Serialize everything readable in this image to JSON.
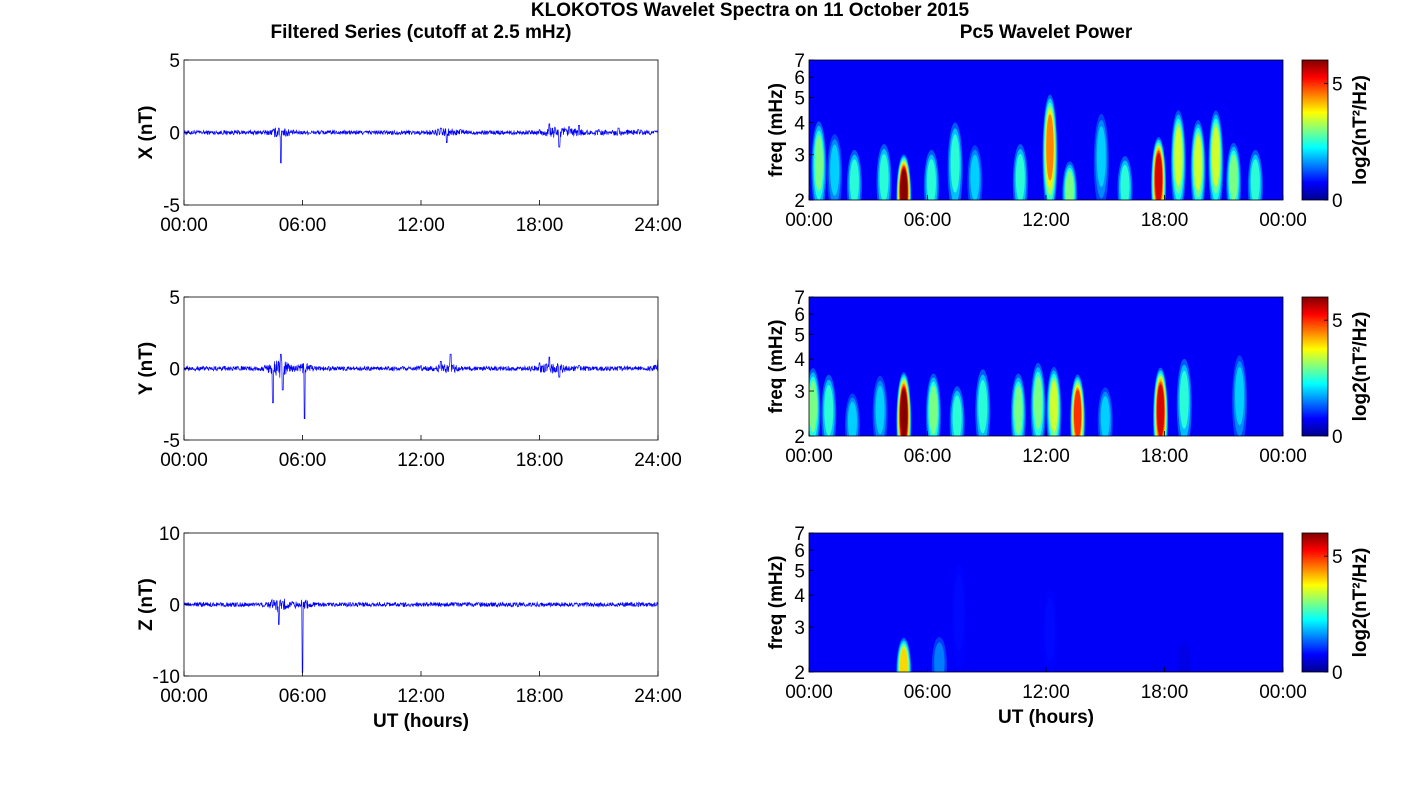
{
  "figure": {
    "title": "KLOKOTOS Wavelet Spectra on 11 October 2015",
    "left_column_title": "Filtered Series (cutoff at 2.5 mHz)",
    "right_column_title": "Pc5 Wavelet Power",
    "xlabel": "UT (hours)"
  },
  "colors": {
    "series_line": "#0000ff",
    "colormap": "jet",
    "background": "#ffffff"
  },
  "chart_data": [
    {
      "type": "line",
      "component": "X",
      "ylabel": "X (nT)",
      "xlim": [
        0,
        24
      ],
      "ylim": [
        -5,
        5
      ],
      "xticks": [
        "00:00",
        "06:00",
        "12:00",
        "18:00",
        "24:00"
      ],
      "yticks": [
        "-5",
        "0",
        "5"
      ],
      "series": [
        {
          "x_hours": [
            0,
            1,
            2,
            3,
            4,
            4.8,
            4.9,
            5,
            6,
            7,
            8,
            9,
            10,
            11,
            12,
            13,
            13.3,
            14,
            15,
            16,
            17,
            18,
            18.5,
            19,
            19.5,
            20,
            21,
            22,
            23,
            24
          ],
          "y_nT": [
            0,
            0,
            0,
            0,
            0,
            0.3,
            -2.1,
            0.1,
            0,
            0,
            0,
            0,
            0,
            0,
            0,
            0.3,
            -0.7,
            0.2,
            0,
            0,
            0,
            0.2,
            0.6,
            -1.0,
            0.4,
            0.5,
            0.2,
            0.3,
            0.2,
            0
          ]
        }
      ]
    },
    {
      "type": "line",
      "component": "Y",
      "ylabel": "Y (nT)",
      "xlim": [
        0,
        24
      ],
      "ylim": [
        -5,
        5
      ],
      "xticks": [
        "00:00",
        "06:00",
        "12:00",
        "18:00",
        "24:00"
      ],
      "yticks": [
        "-5",
        "0",
        "5"
      ],
      "series": [
        {
          "x_hours": [
            0,
            1,
            2,
            3,
            4,
            4.5,
            4.9,
            5,
            6,
            6.1,
            7,
            8,
            9,
            10,
            11,
            12,
            13,
            13.5,
            14,
            15,
            16,
            17,
            18,
            18.5,
            19,
            20,
            21,
            22,
            23,
            24
          ],
          "y_nT": [
            0,
            0,
            0,
            0,
            0,
            -2.4,
            1.0,
            -1.5,
            0,
            -3.5,
            0,
            0,
            0,
            0,
            0,
            0.2,
            0.5,
            1.0,
            0,
            0,
            0,
            0,
            0.4,
            0.8,
            -0.6,
            0.2,
            0,
            0.1,
            0,
            0.6
          ]
        }
      ]
    },
    {
      "type": "line",
      "component": "Z",
      "ylabel": "Z (nT)",
      "xlim": [
        0,
        24
      ],
      "ylim": [
        -10,
        10
      ],
      "xticks": [
        "00:00",
        "06:00",
        "12:00",
        "18:00",
        "24:00"
      ],
      "yticks": [
        "-10",
        "0",
        "10"
      ],
      "series": [
        {
          "x_hours": [
            0,
            2,
            4,
            4.7,
            4.8,
            5,
            5.9,
            6,
            6.1,
            8,
            10,
            12,
            14,
            16,
            18,
            20,
            22,
            24
          ],
          "y_nT": [
            0,
            0,
            0,
            0.5,
            -2.8,
            0.4,
            0,
            -9.5,
            0,
            0,
            0,
            0,
            0,
            0,
            0,
            0,
            0,
            0
          ]
        }
      ]
    },
    {
      "type": "heatmap",
      "component": "X",
      "ylabel": "freq (mHz)",
      "colorbar_label": "log2(nT²/Hz)",
      "xlim": [
        0,
        24
      ],
      "ylim_mHz": [
        2,
        7
      ],
      "yscale": "log",
      "clim": [
        0,
        6
      ],
      "xticks": [
        "00:00",
        "06:00",
        "12:00",
        "18:00",
        "00:00"
      ],
      "yticks": [
        "2",
        "3",
        "4",
        "5",
        "6",
        "7"
      ],
      "cticks": [
        "0",
        "5"
      ],
      "peaks": [
        {
          "t_hours": 0.5,
          "f_mHz": 3.0,
          "log2_power": 3.0
        },
        {
          "t_hours": 1.3,
          "f_mHz": 2.8,
          "log2_power": 2.0
        },
        {
          "t_hours": 2.3,
          "f_mHz": 2.5,
          "log2_power": 2.5
        },
        {
          "t_hours": 3.8,
          "f_mHz": 2.6,
          "log2_power": 2.5
        },
        {
          "t_hours": 4.8,
          "f_mHz": 2.3,
          "log2_power": 6.0
        },
        {
          "t_hours": 6.2,
          "f_mHz": 2.5,
          "log2_power": 2.5
        },
        {
          "t_hours": 7.4,
          "f_mHz": 3.0,
          "log2_power": 2.5
        },
        {
          "t_hours": 8.4,
          "f_mHz": 2.6,
          "log2_power": 2.0
        },
        {
          "t_hours": 10.7,
          "f_mHz": 2.6,
          "log2_power": 2.5
        },
        {
          "t_hours": 12.2,
          "f_mHz": 3.5,
          "log2_power": 4.5
        },
        {
          "t_hours": 13.2,
          "f_mHz": 2.3,
          "log2_power": 3.0
        },
        {
          "t_hours": 14.8,
          "f_mHz": 3.2,
          "log2_power": 2.0
        },
        {
          "t_hours": 16.0,
          "f_mHz": 2.4,
          "log2_power": 2.5
        },
        {
          "t_hours": 17.7,
          "f_mHz": 2.6,
          "log2_power": 5.5
        },
        {
          "t_hours": 18.7,
          "f_mHz": 3.2,
          "log2_power": 3.5
        },
        {
          "t_hours": 19.7,
          "f_mHz": 3.0,
          "log2_power": 3.5
        },
        {
          "t_hours": 20.6,
          "f_mHz": 3.2,
          "log2_power": 3.5
        },
        {
          "t_hours": 21.5,
          "f_mHz": 2.6,
          "log2_power": 3.0
        },
        {
          "t_hours": 22.6,
          "f_mHz": 2.5,
          "log2_power": 2.5
        }
      ]
    },
    {
      "type": "heatmap",
      "component": "Y",
      "ylabel": "freq (mHz)",
      "colorbar_label": "log2(nT²/Hz)",
      "xlim": [
        0,
        24
      ],
      "ylim_mHz": [
        2,
        7
      ],
      "yscale": "log",
      "clim": [
        0,
        6
      ],
      "xticks": [
        "00:00",
        "06:00",
        "12:00",
        "18:00",
        "00:00"
      ],
      "yticks": [
        "2",
        "3",
        "4",
        "5",
        "6",
        "7"
      ],
      "cticks": [
        "0",
        "5"
      ],
      "peaks": [
        {
          "t_hours": 0.2,
          "f_mHz": 2.8,
          "log2_power": 3.0
        },
        {
          "t_hours": 1.0,
          "f_mHz": 2.7,
          "log2_power": 2.5
        },
        {
          "t_hours": 2.2,
          "f_mHz": 2.4,
          "log2_power": 2.0
        },
        {
          "t_hours": 3.6,
          "f_mHz": 2.7,
          "log2_power": 2.0
        },
        {
          "t_hours": 4.8,
          "f_mHz": 2.6,
          "log2_power": 6.0
        },
        {
          "t_hours": 6.3,
          "f_mHz": 2.7,
          "log2_power": 3.0
        },
        {
          "t_hours": 7.5,
          "f_mHz": 2.5,
          "log2_power": 2.5
        },
        {
          "t_hours": 8.8,
          "f_mHz": 2.8,
          "log2_power": 2.5
        },
        {
          "t_hours": 10.6,
          "f_mHz": 2.7,
          "log2_power": 3.0
        },
        {
          "t_hours": 11.6,
          "f_mHz": 2.9,
          "log2_power": 3.0
        },
        {
          "t_hours": 12.4,
          "f_mHz": 2.8,
          "log2_power": 3.5
        },
        {
          "t_hours": 13.6,
          "f_mHz": 2.6,
          "log2_power": 5.0
        },
        {
          "t_hours": 15.0,
          "f_mHz": 2.5,
          "log2_power": 2.0
        },
        {
          "t_hours": 17.8,
          "f_mHz": 2.7,
          "log2_power": 5.5
        },
        {
          "t_hours": 19.0,
          "f_mHz": 3.0,
          "log2_power": 2.5
        },
        {
          "t_hours": 21.8,
          "f_mHz": 3.1,
          "log2_power": 2.0
        }
      ]
    },
    {
      "type": "heatmap",
      "component": "Z",
      "ylabel": "freq (mHz)",
      "colorbar_label": "log2(nT²/Hz)",
      "xlim": [
        0,
        24
      ],
      "ylim_mHz": [
        2,
        7
      ],
      "yscale": "log",
      "clim": [
        0,
        6
      ],
      "xticks": [
        "00:00",
        "06:00",
        "12:00",
        "18:00",
        "00:00"
      ],
      "yticks": [
        "2",
        "3",
        "4",
        "5",
        "6",
        "7"
      ],
      "cticks": [
        "0",
        "5"
      ],
      "peaks": [
        {
          "t_hours": 4.8,
          "f_mHz": 2.2,
          "log2_power": 4.0
        },
        {
          "t_hours": 6.6,
          "f_mHz": 2.3,
          "log2_power": 1.5
        },
        {
          "t_hours": 7.6,
          "f_mHz": 3.8,
          "log2_power": 0.8
        },
        {
          "t_hours": 12.2,
          "f_mHz": 3.2,
          "log2_power": 0.8
        },
        {
          "t_hours": 19.0,
          "f_mHz": 2.3,
          "log2_power": 0.6
        }
      ]
    }
  ]
}
